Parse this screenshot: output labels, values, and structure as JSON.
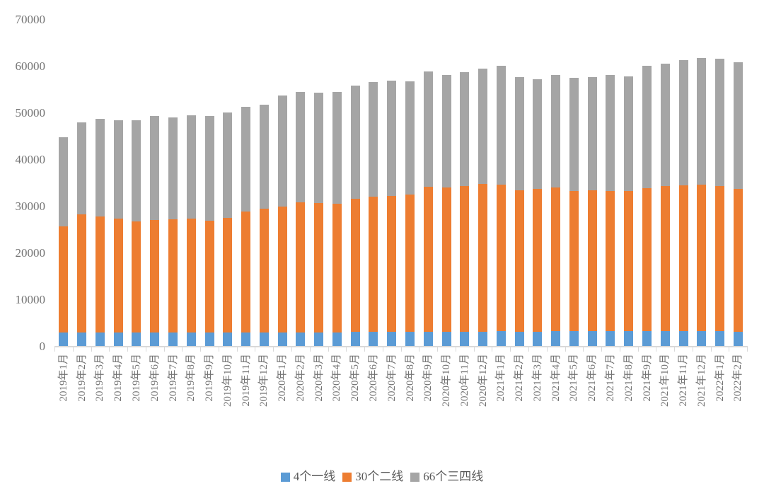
{
  "chart_data": {
    "type": "bar",
    "stacked": true,
    "title": "",
    "xlabel": "",
    "ylabel": "",
    "ylim": [
      0,
      70000
    ],
    "ytick_step": 10000,
    "ytick_labels": [
      "0",
      "10000",
      "20000",
      "30000",
      "40000",
      "50000",
      "60000",
      "70000"
    ],
    "grid": false,
    "legend_position": "bottom",
    "categories": [
      "2019年1月",
      "2019年2月",
      "2019年3月",
      "2019年4月",
      "2019年5月",
      "2019年6月",
      "2019年7月",
      "2019年8月",
      "2019年9月",
      "2019年10月",
      "2019年11月",
      "2019年12月",
      "2020年1月",
      "2020年2月",
      "2020年3月",
      "2020年4月",
      "2020年5月",
      "2020年6月",
      "2020年7月",
      "2020年8月",
      "2020年9月",
      "2020年10月",
      "2020年11月",
      "2020年12月",
      "2021年1月",
      "2021年2月",
      "2021年3月",
      "2021年4月",
      "2021年5月",
      "2021年6月",
      "2021年7月",
      "2021年8月",
      "2021年9月",
      "2021年10月",
      "2021年11月",
      "2021年12月",
      "2022年1月",
      "2022年2月"
    ],
    "series": [
      {
        "name": "4个一线",
        "color": "#5B9BD5",
        "values": [
          3000,
          3000,
          3000,
          3000,
          3000,
          3000,
          3000,
          3000,
          3050,
          3050,
          3100,
          3100,
          3100,
          3100,
          3100,
          3100,
          3150,
          3150,
          3150,
          3200,
          3200,
          3200,
          3250,
          3250,
          3300,
          3250,
          3250,
          3300,
          3300,
          3300,
          3300,
          3300,
          3300,
          3300,
          3350,
          3350,
          3300,
          3250
        ]
      },
      {
        "name": "30个二线",
        "color": "#ED7D31",
        "values": [
          22700,
          25350,
          24850,
          24350,
          23750,
          24150,
          24250,
          24350,
          23950,
          24550,
          25900,
          26400,
          26900,
          27800,
          27650,
          27450,
          28500,
          28900,
          29150,
          29350,
          31000,
          30850,
          31200,
          31650,
          31400,
          30300,
          30550,
          30750,
          30100,
          30150,
          30100,
          30100,
          30650,
          31100,
          31200,
          31350,
          31150,
          30550
        ]
      },
      {
        "name": "66个三四线",
        "color": "#A5A5A5",
        "values": [
          19200,
          19650,
          21000,
          21150,
          21750,
          22250,
          21850,
          22150,
          22350,
          22600,
          22400,
          22350,
          23800,
          23650,
          23650,
          24050,
          24300,
          24650,
          24650,
          24250,
          24750,
          24100,
          24350,
          24700,
          25400,
          24200,
          23500,
          24100,
          24200,
          24250,
          24800,
          24450,
          26250,
          26200,
          26800,
          27150,
          27150,
          27050
        ]
      }
    ]
  },
  "legend": {
    "items": [
      {
        "label": "4个一线",
        "color": "#5B9BD5"
      },
      {
        "label": "30个二线",
        "color": "#ED7D31"
      },
      {
        "label": "66个三四线",
        "color": "#A5A5A5"
      }
    ]
  },
  "style_colors": {
    "axis_line": "#d9d9d9",
    "axis_label_text": "#737373",
    "legend_text": "#595959",
    "background": "#ffffff"
  }
}
